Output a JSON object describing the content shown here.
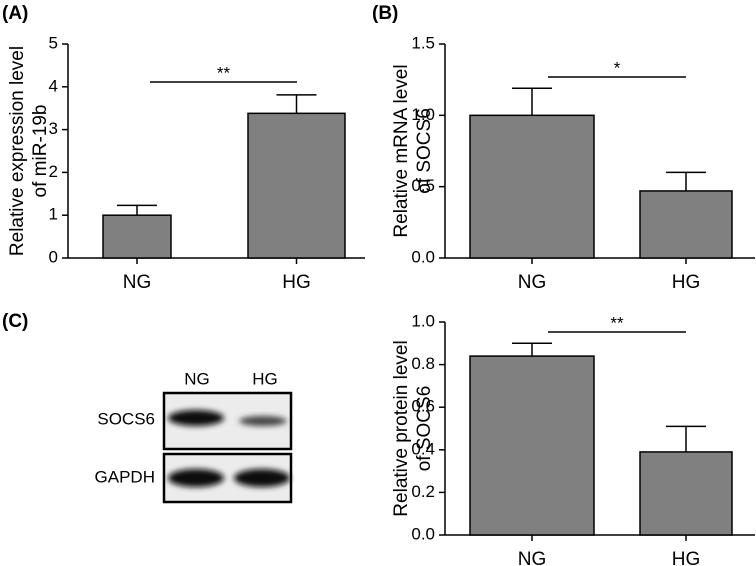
{
  "chart_data": [
    {
      "type": "bar",
      "panel": "(A)",
      "ylabel": [
        "Relative expression level",
        "of miR-19b"
      ],
      "categories": [
        "NG",
        "HG"
      ],
      "values": [
        1.0,
        3.38
      ],
      "errors": [
        0.23,
        0.43
      ],
      "color": "#808080",
      "ylim": [
        0,
        5
      ],
      "yticks": [
        0,
        1,
        2,
        3,
        4,
        5
      ],
      "significance": "**"
    },
    {
      "type": "bar",
      "panel": "(B)",
      "ylabel": [
        "Relative mRNA level",
        "of SOCS6"
      ],
      "categories": [
        "NG",
        "HG"
      ],
      "values": [
        1.0,
        0.47
      ],
      "errors": [
        0.19,
        0.13
      ],
      "color": "#808080",
      "ylim": [
        0,
        1.5
      ],
      "yticks": [
        {
          "value": 0,
          "label": "0.0"
        },
        0.5,
        {
          "value": 1,
          "label": "1.0"
        },
        1.5
      ],
      "significance": "*"
    },
    {
      "type": "bar",
      "ylabel": [
        "Relative protein level",
        "of SOCS6"
      ],
      "categories": [
        "NG",
        "HG"
      ],
      "values": [
        0.84,
        0.39
      ],
      "errors": [
        0.06,
        0.12
      ],
      "color": "#808080",
      "ylim": [
        0,
        1
      ],
      "yticks": [
        {
          "value": 0,
          "label": "0.0"
        },
        0.2,
        0.4,
        0.6,
        0.8,
        {
          "value": 1,
          "label": "1.0"
        }
      ],
      "significance": "**"
    }
  ],
  "blot": {
    "panel": "(C)",
    "lanes": [
      "NG",
      "HG"
    ],
    "rows": [
      "SOCS6",
      "GAPDH"
    ]
  }
}
